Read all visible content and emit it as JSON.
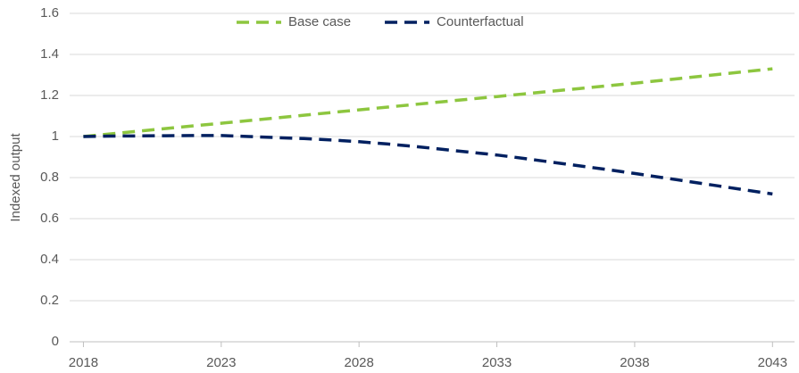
{
  "chart_data": {
    "type": "line",
    "y_label": "Indexed output",
    "x": [
      2018,
      2019,
      2020,
      2021,
      2022,
      2023,
      2024,
      2025,
      2026,
      2027,
      2028,
      2029,
      2030,
      2031,
      2032,
      2033,
      2034,
      2035,
      2036,
      2037,
      2038,
      2039,
      2040,
      2041,
      2042,
      2043
    ],
    "series": [
      {
        "name": "Base case",
        "color": "#8dc63f",
        "values": [
          1.0,
          1.013,
          1.026,
          1.039,
          1.052,
          1.065,
          1.078,
          1.091,
          1.104,
          1.117,
          1.13,
          1.143,
          1.156,
          1.169,
          1.182,
          1.195,
          1.208,
          1.221,
          1.234,
          1.247,
          1.26,
          1.274,
          1.288,
          1.302,
          1.316,
          1.33
        ]
      },
      {
        "name": "Counterfactual",
        "color": "#002060",
        "values": [
          1.0,
          1.002,
          1.003,
          1.004,
          1.005,
          1.005,
          1.0,
          0.995,
          0.99,
          0.983,
          0.975,
          0.964,
          0.952,
          0.938,
          0.924,
          0.91,
          0.893,
          0.875,
          0.857,
          0.839,
          0.82,
          0.8,
          0.78,
          0.76,
          0.74,
          0.72
        ]
      }
    ],
    "xlim": [
      2017.5,
      2043.8
    ],
    "xticks": [
      2018,
      2023,
      2028,
      2033,
      2038,
      2043
    ],
    "ylim": [
      0,
      1.6
    ],
    "yticks": [
      0,
      0.2,
      0.4,
      0.6,
      0.8,
      1,
      1.2,
      1.4,
      1.6
    ],
    "grid": true,
    "legend": "top"
  }
}
